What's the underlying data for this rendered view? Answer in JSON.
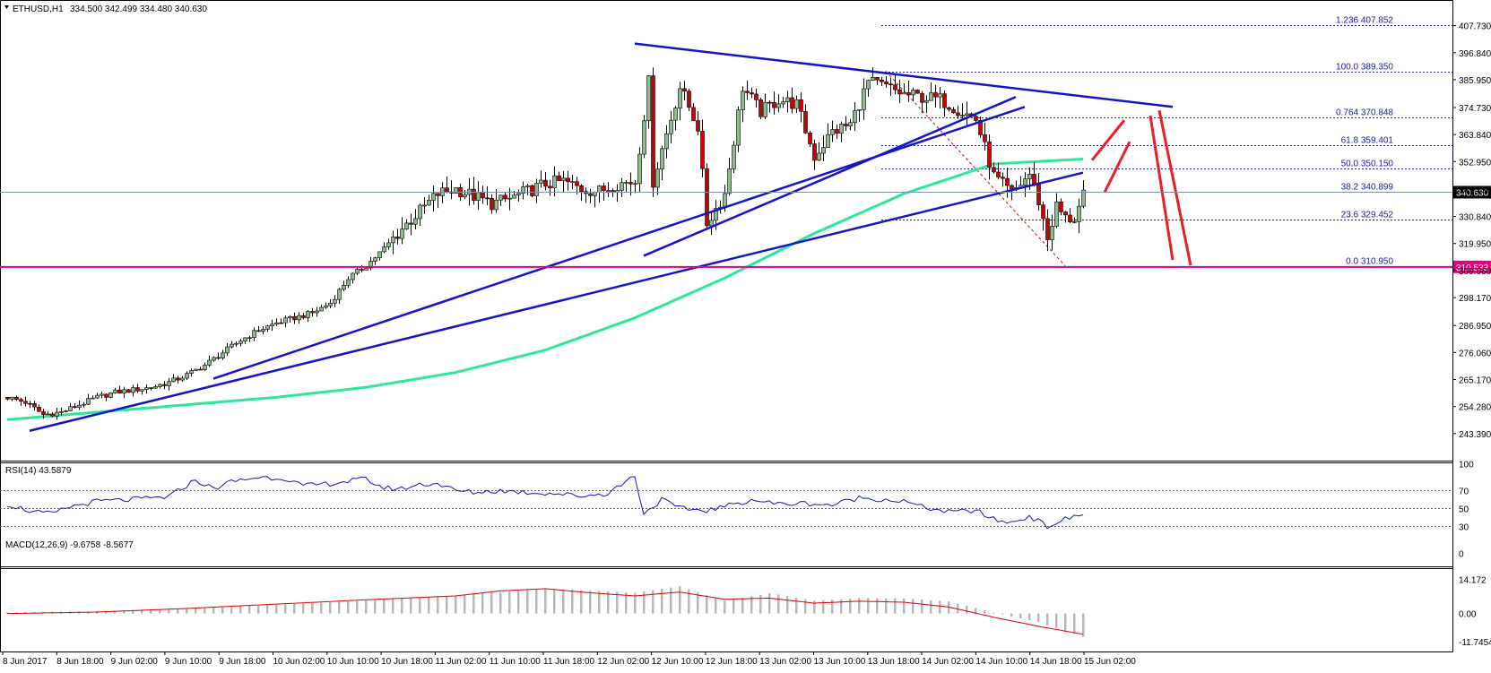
{
  "header": {
    "symbol": "ETHUSD,H1",
    "ohlc": "334.500 342.499 334.480 340.630",
    "rsi_label": "RSI(14) 43.5879",
    "macd_label": "MACD(12,26,9) -9.6758 -8.5677"
  },
  "colors": {
    "bull_candle": "#8fbc8f",
    "bear_candle": "#cc0000",
    "trendline": "#1414c8",
    "ma": "#2ee89a",
    "support": "#e6007e",
    "forecast": "#ee1c24",
    "fib_line": "#1a1aa8",
    "rsi_line": "#1414c8",
    "macd_signal": "#e00000",
    "macd_hist": "#b8b8b8"
  },
  "chart_data": [
    {
      "type": "candlestick",
      "title": "",
      "ylim": [
        243.39,
        413.0
      ],
      "price_ticks": [
        "407.730",
        "396.840",
        "385.950",
        "374.730",
        "363.840",
        "352.950",
        "341.730",
        "330.840",
        "319.950",
        "309.060",
        "298.170",
        "286.950",
        "276.060",
        "265.170",
        "254.280",
        "243.390"
      ],
      "current_price": "340.630",
      "support_level": "310.533",
      "fibonacci": [
        {
          "label": "1.236 407.852",
          "price": 407.852
        },
        {
          "label": "100.0 389.350",
          "price": 389.35
        },
        {
          "label": "0.764 370.848",
          "price": 370.848
        },
        {
          "label": "61.8 359.401",
          "price": 359.401
        },
        {
          "label": "50.0 350.150",
          "price": 350.15
        },
        {
          "label": "38.2 340.899",
          "price": 340.899
        },
        {
          "label": "23.6 329.452",
          "price": 329.452
        },
        {
          "label": "0.0 310.950",
          "price": 310.95
        }
      ],
      "time_labels": [
        "8 Jun 2017",
        "8 Jun 18:00",
        "9 Jun 02:00",
        "9 Jun 10:00",
        "9 Jun 18:00",
        "10 Jun 02:00",
        "10 Jun 10:00",
        "10 Jun 18:00",
        "11 Jun 02:00",
        "11 Jun 10:00",
        "11 Jun 18:00",
        "12 Jun 02:00",
        "12 Jun 10:00",
        "12 Jun 18:00",
        "13 Jun 02:00",
        "13 Jun 10:00",
        "13 Jun 18:00",
        "14 Jun 02:00",
        "14 Jun 10:00",
        "14 Jun 18:00",
        "15 Jun 02:00"
      ],
      "price_path": [
        [
          0,
          258
        ],
        [
          4,
          256
        ],
        [
          8,
          251
        ],
        [
          12,
          252
        ],
        [
          16,
          255
        ],
        [
          20,
          258
        ],
        [
          24,
          260
        ],
        [
          28,
          261
        ],
        [
          32,
          262
        ],
        [
          36,
          264
        ],
        [
          40,
          267
        ],
        [
          44,
          271
        ],
        [
          48,
          276
        ],
        [
          52,
          281
        ],
        [
          56,
          285
        ],
        [
          60,
          288
        ],
        [
          64,
          290
        ],
        [
          68,
          292
        ],
        [
          72,
          296
        ],
        [
          76,
          306
        ],
        [
          80,
          311
        ],
        [
          84,
          318
        ],
        [
          88,
          326
        ],
        [
          92,
          333
        ],
        [
          96,
          340
        ],
        [
          100,
          342
        ],
        [
          104,
          339
        ],
        [
          108,
          336
        ],
        [
          112,
          338
        ],
        [
          116,
          341
        ],
        [
          120,
          344
        ],
        [
          124,
          345
        ],
        [
          128,
          342
        ],
        [
          132,
          341
        ],
        [
          136,
          344
        ],
        [
          140,
          345
        ],
        [
          143,
          385
        ],
        [
          144,
          345
        ],
        [
          146,
          358
        ],
        [
          150,
          383
        ],
        [
          154,
          367
        ],
        [
          156,
          328
        ],
        [
          160,
          340
        ],
        [
          164,
          383
        ],
        [
          168,
          373
        ],
        [
          172,
          378
        ],
        [
          176,
          376
        ],
        [
          180,
          355
        ],
        [
          184,
          365
        ],
        [
          188,
          368
        ],
        [
          192,
          385
        ],
        [
          196,
          383
        ],
        [
          200,
          380
        ],
        [
          204,
          379
        ],
        [
          208,
          378
        ],
        [
          212,
          374
        ],
        [
          216,
          370
        ],
        [
          220,
          347
        ],
        [
          224,
          340
        ],
        [
          228,
          348
        ],
        [
          230,
          337
        ],
        [
          232,
          322
        ],
        [
          234,
          335
        ],
        [
          236,
          330
        ],
        [
          238,
          330
        ],
        [
          240,
          339
        ]
      ],
      "ma_path": [
        [
          0,
          249
        ],
        [
          20,
          252
        ],
        [
          40,
          255
        ],
        [
          60,
          258
        ],
        [
          80,
          262
        ],
        [
          100,
          268
        ],
        [
          120,
          277
        ],
        [
          140,
          290
        ],
        [
          160,
          306
        ],
        [
          180,
          324
        ],
        [
          200,
          340
        ],
        [
          220,
          352
        ],
        [
          240,
          354
        ]
      ],
      "trendlines": [
        {
          "from": [
            5,
            244.5
          ],
          "to": [
            240,
            348.5
          ]
        },
        {
          "from": [
            46,
            265.5
          ],
          "to": [
            227,
            375
          ]
        },
        {
          "from": [
            142,
            315
          ],
          "to": [
            225,
            379
          ]
        },
        {
          "from": [
            140,
            400.5
          ],
          "to": [
            260,
            375
          ]
        }
      ],
      "forecast_path": [
        [
          240,
          342
        ],
        [
          246,
          357
        ],
        [
          252,
          330
        ],
        [
          258,
          318
        ]
      ]
    },
    {
      "type": "line",
      "title": "RSI(14)",
      "ylim": [
        0,
        100
      ],
      "levels": [
        30,
        50,
        70
      ],
      "ticks": [
        "100",
        "70",
        "50",
        "30",
        "0"
      ],
      "series": [
        {
          "name": "RSI(14)",
          "values": [
            [
              0,
              55
            ],
            [
              6,
              46
            ],
            [
              10,
              44
            ],
            [
              14,
              52
            ],
            [
              20,
              58
            ],
            [
              28,
              60
            ],
            [
              36,
              63
            ],
            [
              42,
              82
            ],
            [
              46,
              72
            ],
            [
              50,
              80
            ],
            [
              56,
              85
            ],
            [
              62,
              84
            ],
            [
              66,
              75
            ],
            [
              72,
              78
            ],
            [
              80,
              83
            ],
            [
              84,
              73
            ],
            [
              88,
              72
            ],
            [
              92,
              77
            ],
            [
              96,
              78
            ],
            [
              100,
              70
            ],
            [
              104,
              68
            ],
            [
              110,
              70
            ],
            [
              116,
              68
            ],
            [
              122,
              67
            ],
            [
              128,
              64
            ],
            [
              134,
              67
            ],
            [
              140,
              87
            ],
            [
              142,
              44
            ],
            [
              146,
              60
            ],
            [
              150,
              50
            ],
            [
              156,
              48
            ],
            [
              160,
              52
            ],
            [
              166,
              60
            ],
            [
              172,
              55
            ],
            [
              178,
              56
            ],
            [
              184,
              54
            ],
            [
              190,
              62
            ],
            [
              196,
              60
            ],
            [
              200,
              58
            ],
            [
              204,
              52
            ],
            [
              210,
              46
            ],
            [
              216,
              48
            ],
            [
              220,
              38
            ],
            [
              224,
              34
            ],
            [
              228,
              42
            ],
            [
              232,
              30
            ],
            [
              236,
              38
            ],
            [
              240,
              43.6
            ]
          ]
        }
      ]
    },
    {
      "type": "bar",
      "title": "MACD(12,26,9)",
      "ylim": [
        -11.7454,
        14.172
      ],
      "ticks": [
        "14.172",
        "0.00",
        "-11.7454"
      ],
      "histogram": [
        [
          0,
          0.5
        ],
        [
          20,
          1
        ],
        [
          40,
          2.2
        ],
        [
          60,
          3.6
        ],
        [
          80,
          5.4
        ],
        [
          100,
          7.4
        ],
        [
          120,
          10.4
        ],
        [
          140,
          8.6
        ],
        [
          150,
          11.3
        ],
        [
          160,
          5.2
        ],
        [
          170,
          8.4
        ],
        [
          180,
          5.4
        ],
        [
          190,
          6.4
        ],
        [
          200,
          6.3
        ],
        [
          210,
          5
        ],
        [
          220,
          0.4
        ],
        [
          230,
          -3.6
        ],
        [
          240,
          -9.7
        ]
      ],
      "signal": [
        [
          0,
          0
        ],
        [
          20,
          0.6
        ],
        [
          40,
          2.1
        ],
        [
          60,
          3.9
        ],
        [
          80,
          5.7
        ],
        [
          100,
          7.3
        ],
        [
          110,
          9.4
        ],
        [
          120,
          10.3
        ],
        [
          130,
          8.6
        ],
        [
          140,
          7.3
        ],
        [
          150,
          8.9
        ],
        [
          160,
          5.9
        ],
        [
          170,
          6.4
        ],
        [
          180,
          4.3
        ],
        [
          190,
          5.1
        ],
        [
          200,
          4.7
        ],
        [
          210,
          2.7
        ],
        [
          220,
          -1.5
        ],
        [
          230,
          -5.3
        ],
        [
          240,
          -8.6
        ]
      ]
    }
  ]
}
